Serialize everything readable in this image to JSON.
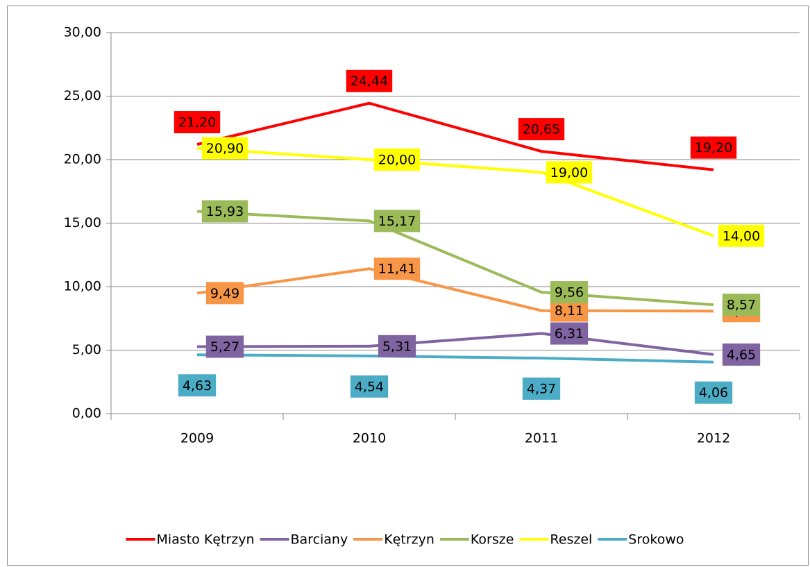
{
  "chart_data": {
    "type": "line",
    "categories": [
      "2009",
      "2010",
      "2011",
      "2012"
    ],
    "series": [
      {
        "name": "Miasto Kętrzyn",
        "color": "#ff0000",
        "values": [
          21.2,
          24.44,
          20.65,
          19.2
        ],
        "value_labels": [
          "21,20",
          "24,44",
          "20,65",
          "19,20"
        ]
      },
      {
        "name": "Barciany",
        "color": "#8064a2",
        "values": [
          5.27,
          5.31,
          6.31,
          4.65
        ],
        "value_labels": [
          "5,27",
          "5,31",
          "6,31",
          "4,65"
        ]
      },
      {
        "name": "Kętrzyn",
        "color": "#f79646",
        "values": [
          9.49,
          11.41,
          8.11,
          8.07
        ],
        "value_labels": [
          "9,49",
          "11,41",
          "8,11",
          "8,07"
        ]
      },
      {
        "name": "Korsze",
        "color": "#9bbb59",
        "values": [
          15.93,
          15.17,
          9.56,
          8.57
        ],
        "value_labels": [
          "15,93",
          "15,17",
          "9,56",
          "8,57"
        ]
      },
      {
        "name": "Reszel",
        "color": "#ffff00",
        "values": [
          20.9,
          20.0,
          19.0,
          14.0
        ],
        "value_labels": [
          "20,90",
          "20,00",
          "19,00",
          "14,00"
        ]
      },
      {
        "name": "Srokowo",
        "color": "#4bacc6",
        "values": [
          4.63,
          4.54,
          4.37,
          4.06
        ],
        "value_labels": [
          "4,63",
          "4,54",
          "4,37",
          "4,06"
        ]
      }
    ],
    "ylim": [
      0,
      30
    ],
    "yticks": [
      {
        "value": 0,
        "label": "0,00"
      },
      {
        "value": 5,
        "label": "5,00"
      },
      {
        "value": 10,
        "label": "10,00"
      },
      {
        "value": 15,
        "label": "15,00"
      },
      {
        "value": 20,
        "label": "20,00"
      },
      {
        "value": 25,
        "label": "25,00"
      },
      {
        "value": 30,
        "label": "30,00"
      }
    ],
    "grid": true,
    "legend": "bottom"
  }
}
